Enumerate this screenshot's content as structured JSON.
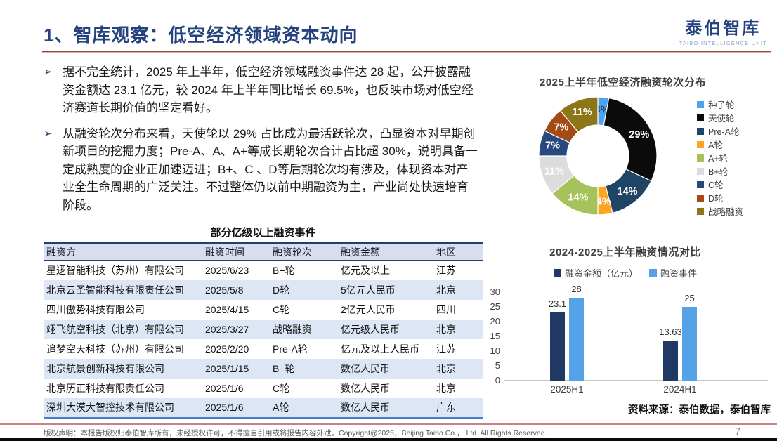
{
  "slide": {
    "title": "1、智库观察：低空经济领域资本动向",
    "logo": {
      "name": "泰伯智库",
      "subtitle": "TAIBO INTELLIGENCE UNIT"
    },
    "source_note": "资料来源：泰伯数据，泰伯智库",
    "copyright": "版权声明：本报告版权归泰伯智库所有，未经授权许可，不得擅自引用或将报告内容外泄。Copyright@2025，Beijing Taibo Co.， Ltd. All Rights Reserved.",
    "page_number": "7"
  },
  "bullets": {
    "marker": "➢",
    "items": [
      "据不完全统计，2025 年上半年，低空经济领域融资事件达 28 起，公开披露融资金额达 23.1 亿元，较 2024 年上半年同比增长 69.5%，也反映市场对低空经济赛道长期价值的坚定看好。",
      "从融资轮次分布来看，天使轮以 29% 占比成为最活跃轮次，凸显资本对早期创新项目的挖掘力度；Pre-A、A、A+等成长期轮次合计占比超 30%，说明具备一定成熟度的企业正加速迈进；B+、C 、D等后期轮次均有涉及，体现资本对产业全生命周期的广泛关注。不过整体仍以前中期融资为主，产业尚处快速培育阶段。"
    ]
  },
  "table": {
    "title": "部分亿级以上融资事件",
    "headers": [
      "融资方",
      "融资时间",
      "融资轮次",
      "融资金额",
      "地区"
    ],
    "rows": [
      [
        "星逻智能科技（苏州）有限公司",
        "2025/6/23",
        "B+轮",
        "亿元及以上",
        "江苏"
      ],
      [
        "北京云圣智能科技有限责任公司",
        "2025/5/8",
        "D轮",
        "5亿元人民币",
        "北京"
      ],
      [
        "四川傲势科技有限公司",
        "2025/4/15",
        "C轮",
        "2亿元人民币",
        "四川"
      ],
      [
        "翊飞航空科技（北京）有限公司",
        "2025/3/27",
        "战略融资",
        "亿元级人民币",
        "北京"
      ],
      [
        "追梦空天科技（苏州）有限公司",
        "2025/2/20",
        "Pre-A轮",
        "亿元及以上人民币",
        "江苏"
      ],
      [
        "北京航景创新科技有限公司",
        "2025/1/15",
        "B+轮",
        "数亿人民币",
        "北京"
      ],
      [
        "北京历正科技有限责任公司",
        "2025/1/6",
        "C轮",
        "数亿人民币",
        "北京"
      ],
      [
        "深圳大漠大智控技术有限公司",
        "2025/1/6",
        "A轮",
        "数亿人民币",
        "广东"
      ]
    ]
  },
  "chart_data": [
    {
      "type": "pie",
      "subtype": "donut",
      "title": "2025上半年低空经济融资轮次分布",
      "labels": [
        "种子轮",
        "天使轮",
        "Pre-A轮",
        "A轮",
        "A+轮",
        "B+轮",
        "C轮",
        "D轮",
        "战略融资"
      ],
      "values": [
        3,
        29,
        14,
        4,
        14,
        11,
        7,
        7,
        11
      ],
      "unit": "%",
      "data_labels": [
        "3%",
        "29%",
        "14%",
        "4%",
        "14%",
        "11%",
        "7%",
        "7%",
        "11%"
      ],
      "colors": [
        "#4FA3EE",
        "#0B0B0B",
        "#1E4466",
        "#FFA41E",
        "#A6C25B",
        "#DCDCDC",
        "#27497E",
        "#A34A15",
        "#8D7618"
      ],
      "data_label_colors": [
        "#1F3E78",
        "#FFFFFF",
        "#FFFFFF",
        "#FFFFFF",
        "#FFFFFF",
        "#FFFFFF",
        "#FFFFFF",
        "#FFFFFF",
        "#FFFFFF"
      ],
      "legend_position": "right",
      "start_angle": "top",
      "direction": "clockwise"
    },
    {
      "type": "bar",
      "title": "2024-2025上半年融资情况对比",
      "categories": [
        "2025H1",
        "2024H1"
      ],
      "series": [
        {
          "name": "融资金额（亿元）",
          "values": [
            23.1,
            13.63
          ],
          "labels": [
            "23.1",
            "13.63"
          ],
          "color": "#1F3864"
        },
        {
          "name": "融资事件",
          "values": [
            28,
            25
          ],
          "labels": [
            "28",
            "25"
          ],
          "color": "#55A2E8"
        }
      ],
      "ylim": [
        0,
        30
      ],
      "yticks": [
        0,
        5,
        10,
        15,
        20,
        25,
        30
      ],
      "grid": false,
      "legend_position": "top"
    }
  ],
  "theme": {
    "accent_navy": "#24437E",
    "rule_red": "#9C4444",
    "footer_rule_red": "#CE8080",
    "table_header_bg": "#D6DEF0",
    "table_stripe_bg": "#DCE6F4",
    "table_bottom_border": "#4A7CC7"
  }
}
